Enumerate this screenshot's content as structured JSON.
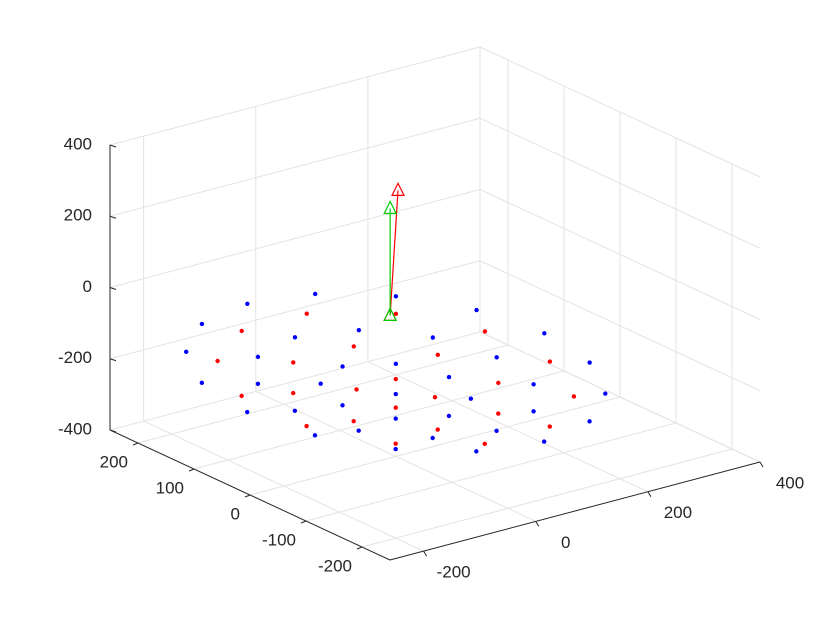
{
  "chart_data": {
    "type": "scatter3d",
    "xlim": [
      -260,
      400
    ],
    "ylim": [
      -250,
      250
    ],
    "zlim": [
      -400,
      400
    ],
    "xticks": [
      -200,
      0,
      200,
      400
    ],
    "yticks": [
      -200,
      -100,
      0,
      100,
      200
    ],
    "zticks": [
      -400,
      -200,
      0,
      200,
      400
    ],
    "grid": true,
    "series": [
      {
        "color": "#0000ff",
        "x": [
          265,
          245,
          187,
          101,
          0,
          -101,
          -187,
          -245,
          -265,
          -245,
          -187,
          -101,
          0,
          101,
          187,
          245,
          180,
          156,
          90,
          0,
          -90,
          -156,
          -180,
          -156,
          -90,
          0,
          90,
          156,
          95,
          67,
          0,
          -67,
          -95,
          -67,
          0,
          67,
          0
        ],
        "y": [
          0,
          101,
          187,
          245,
          265,
          245,
          187,
          101,
          0,
          -101,
          -187,
          -245,
          -265,
          -245,
          -187,
          -101,
          0,
          90,
          156,
          180,
          156,
          90,
          0,
          -90,
          -156,
          -180,
          -156,
          -90,
          0,
          67,
          95,
          67,
          0,
          -67,
          -95,
          -67,
          0
        ],
        "z": [
          -165,
          -165,
          -165,
          -165,
          -165,
          -165,
          -165,
          -165,
          -165,
          -165,
          -165,
          -165,
          -165,
          -165,
          -165,
          -165,
          -197,
          -197,
          -197,
          -197,
          -197,
          -197,
          -197,
          -197,
          -197,
          -197,
          -197,
          -197,
          -217,
          -217,
          -217,
          -217,
          -217,
          -217,
          -217,
          -217,
          -225
        ]
      },
      {
        "color": "#ff0000",
        "x": [
          217,
          159,
          58,
          -58,
          -159,
          -217,
          -217,
          -159,
          -58,
          58,
          159,
          217,
          129,
          54,
          -54,
          -129,
          -129,
          -54,
          54,
          129,
          35,
          -35,
          -35,
          35
        ],
        "y": [
          58,
          159,
          217,
          217,
          159,
          58,
          -58,
          -159,
          -217,
          -217,
          -159,
          -58,
          54,
          129,
          129,
          54,
          -54,
          -129,
          -129,
          -54,
          35,
          35,
          -35,
          -35
        ],
        "z": [
          -182,
          -182,
          -182,
          -182,
          -182,
          -182,
          -182,
          -182,
          -182,
          -182,
          -182,
          -182,
          -208,
          -208,
          -208,
          -208,
          -208,
          -208,
          -208,
          -208,
          -223,
          -223,
          -223,
          -223
        ]
      }
    ],
    "quiver": [
      {
        "color": "#ff0000",
        "x": -10,
        "y": 0,
        "z": 0,
        "u": 14,
        "v": 0,
        "w": 345
      },
      {
        "color": "#00cc00",
        "x": -10,
        "y": 0,
        "z": 0,
        "u": 0,
        "v": 0,
        "w": 300
      }
    ]
  }
}
